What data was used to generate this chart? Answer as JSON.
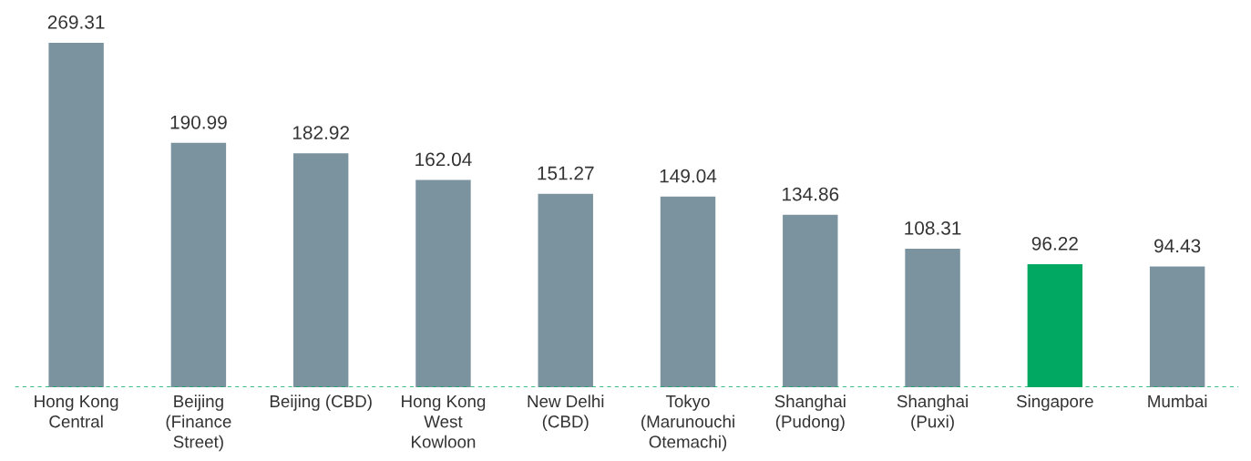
{
  "chart_data": {
    "type": "bar",
    "categories": [
      "Hong Kong\nCentral",
      "Beijing\n(Finance\nStreet)",
      "Beijing (CBD)",
      "Hong Kong\nWest\nKowloon",
      "New Delhi\n(CBD)",
      "Tokyo\n(Marunouchi\nOtemachi)",
      "Shanghai\n(Pudong)",
      "Shanghai\n(Puxi)",
      "Singapore",
      "Mumbai"
    ],
    "values": [
      269.31,
      190.99,
      182.92,
      162.04,
      151.27,
      149.04,
      134.86,
      108.31,
      96.22,
      94.43
    ],
    "colors": [
      "#7b939e",
      "#7b939e",
      "#7b939e",
      "#7b939e",
      "#7b939e",
      "#7b939e",
      "#7b939e",
      "#7b939e",
      "#00a862",
      "#7b939e"
    ],
    "data_labels": true,
    "ref_lines": [
      {
        "axis": "y",
        "value": 0,
        "color": "#00a862",
        "line_style": "dashed"
      }
    ]
  }
}
